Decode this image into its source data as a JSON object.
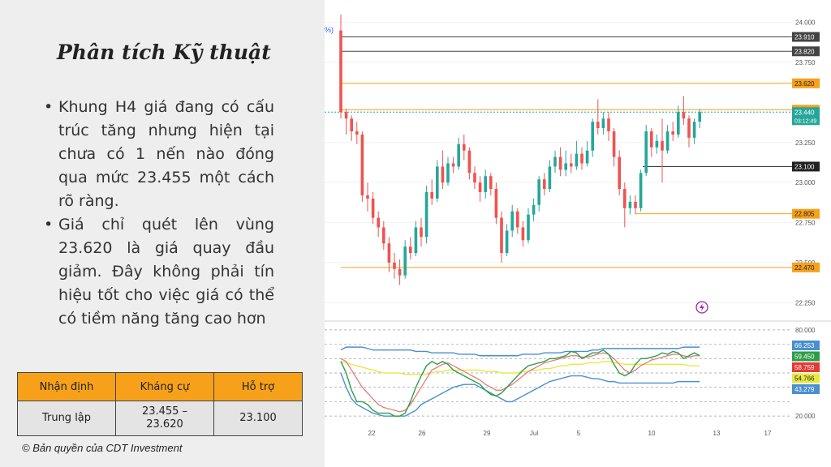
{
  "slide": {
    "title": "Phân tích Kỹ thuật",
    "bullets": [
      "Khung H4 giá đang có cấu trúc tăng nhưng hiện tại chưa có 1 nến nào đóng qua mức 23.455 một cách rõ ràng.",
      "Giá chỉ quét lên vùng 23.620 là giá quay đầu giảm. Đây không phải tín hiệu tốt cho việc giá có thể  có tiềm năng tăng cao hơn"
    ],
    "table": {
      "headers": [
        "Nhận định",
        "Kháng cự",
        "Hỗ trợ"
      ],
      "row": [
        "Trung lập",
        "23.455 – 23.620",
        "23.100"
      ]
    },
    "copyright": "© Bản quyền của CDT Investment"
  },
  "chart_data": {
    "type": "candlestick",
    "price_axis": {
      "ticks": [
        "24.000",
        "23.750",
        "23.250",
        "23.000",
        "22.750",
        "22.500",
        "22.250"
      ],
      "range": [
        22.15,
        24.1
      ]
    },
    "levels": [
      {
        "value": 23.91,
        "label": "23.910",
        "kind": "resistance",
        "color": "#444444"
      },
      {
        "value": 23.82,
        "label": "23.820",
        "kind": "resistance",
        "color": "#444444"
      },
      {
        "value": 23.62,
        "label": "23.620",
        "kind": "resistance",
        "color": "#f7a11a"
      },
      {
        "value": 23.455,
        "label": "23.455",
        "kind": "resistance",
        "color": "#f7a11a"
      },
      {
        "value": 23.1,
        "label": "23.100",
        "kind": "support",
        "color": "#222222"
      },
      {
        "value": 22.805,
        "label": "22.805",
        "kind": "support",
        "color": "#f7a11a"
      },
      {
        "value": 22.47,
        "label": "22.470",
        "kind": "support",
        "color": "#f7a11a"
      }
    ],
    "current_price": {
      "value": 23.44,
      "label": "23.440",
      "countdown": "03:12:49",
      "color": "#26a69a"
    },
    "corner_label": "%)",
    "x_axis": {
      "ticks": [
        "22",
        "26",
        "29",
        "Jul",
        "5",
        "10",
        "13",
        "17"
      ]
    },
    "candles": [
      [
        23.95,
        23.44,
        24.05,
        23.4
      ],
      [
        23.44,
        23.4,
        23.46,
        23.3
      ],
      [
        23.4,
        23.32,
        23.42,
        23.26
      ],
      [
        23.32,
        23.3,
        23.38,
        23.24
      ],
      [
        23.3,
        22.92,
        23.32,
        22.88
      ],
      [
        22.92,
        22.9,
        23.0,
        22.82
      ],
      [
        22.9,
        22.78,
        22.94,
        22.74
      ],
      [
        22.78,
        22.72,
        22.82,
        22.66
      ],
      [
        22.72,
        22.62,
        22.76,
        22.58
      ],
      [
        22.62,
        22.5,
        22.66,
        22.44
      ],
      [
        22.5,
        22.46,
        22.56,
        22.4
      ],
      [
        22.46,
        22.42,
        22.52,
        22.36
      ],
      [
        22.42,
        22.6,
        22.64,
        22.4
      ],
      [
        22.6,
        22.56,
        22.66,
        22.52
      ],
      [
        22.56,
        22.72,
        22.76,
        22.54
      ],
      [
        22.72,
        22.66,
        22.78,
        22.6
      ],
      [
        22.66,
        22.94,
        22.98,
        22.62
      ],
      [
        22.94,
        22.9,
        23.02,
        22.86
      ],
      [
        22.9,
        23.1,
        23.14,
        22.88
      ],
      [
        23.1,
        23.0,
        23.2,
        22.96
      ],
      [
        23.0,
        23.12,
        23.16,
        22.98
      ],
      [
        23.12,
        23.1,
        23.16,
        23.06
      ],
      [
        23.1,
        23.24,
        23.28,
        23.08
      ],
      [
        23.24,
        23.2,
        23.3,
        23.14
      ],
      [
        23.2,
        23.06,
        23.22,
        23.02
      ],
      [
        23.06,
        23.0,
        23.1,
        22.96
      ],
      [
        23.0,
        22.94,
        23.04,
        22.88
      ],
      [
        22.94,
        23.04,
        23.08,
        22.9
      ],
      [
        23.04,
        22.96,
        23.06,
        22.92
      ],
      [
        22.96,
        22.78,
        23.0,
        22.74
      ],
      [
        22.78,
        22.56,
        22.82,
        22.5
      ],
      [
        22.56,
        22.7,
        22.74,
        22.54
      ],
      [
        22.7,
        22.82,
        22.86,
        22.66
      ],
      [
        22.82,
        22.72,
        22.84,
        22.68
      ],
      [
        22.72,
        22.64,
        22.76,
        22.6
      ],
      [
        22.64,
        22.8,
        22.84,
        22.62
      ],
      [
        22.8,
        22.86,
        22.9,
        22.76
      ],
      [
        22.86,
        23.02,
        23.04,
        22.82
      ],
      [
        23.02,
        22.96,
        23.06,
        22.92
      ],
      [
        22.96,
        23.1,
        23.14,
        22.94
      ],
      [
        23.1,
        23.16,
        23.2,
        23.06
      ],
      [
        23.16,
        23.08,
        23.22,
        23.04
      ],
      [
        23.08,
        23.12,
        23.2,
        23.04
      ],
      [
        23.12,
        23.1,
        23.18,
        23.06
      ],
      [
        23.1,
        23.18,
        23.26,
        23.08
      ],
      [
        23.18,
        23.12,
        23.22,
        23.08
      ],
      [
        23.12,
        23.2,
        23.26,
        23.1
      ],
      [
        23.2,
        23.38,
        23.4,
        23.16
      ],
      [
        23.38,
        23.34,
        23.52,
        23.3
      ],
      [
        23.34,
        23.4,
        23.44,
        23.3
      ],
      [
        23.4,
        23.32,
        23.44,
        23.26
      ],
      [
        23.32,
        23.16,
        23.34,
        23.1
      ],
      [
        23.16,
        22.96,
        23.2,
        22.92
      ],
      [
        22.96,
        22.84,
        23.0,
        22.72
      ],
      [
        22.84,
        22.88,
        22.92,
        22.8
      ],
      [
        22.88,
        22.84,
        22.92,
        22.8
      ],
      [
        22.84,
        23.06,
        23.08,
        22.82
      ],
      [
        23.06,
        23.32,
        23.36,
        23.04
      ],
      [
        23.32,
        23.22,
        23.34,
        23.16
      ],
      [
        23.22,
        23.26,
        23.3,
        23.18
      ],
      [
        23.26,
        23.2,
        23.4,
        23.0
      ],
      [
        23.2,
        23.32,
        23.36,
        23.18
      ],
      [
        23.32,
        23.3,
        23.38,
        23.26
      ],
      [
        23.3,
        23.44,
        23.48,
        23.28
      ],
      [
        23.44,
        23.4,
        23.54,
        23.36
      ],
      [
        23.4,
        23.28,
        23.42,
        23.22
      ],
      [
        23.28,
        23.38,
        23.4,
        23.24
      ],
      [
        23.38,
        23.44,
        23.46,
        23.34
      ]
    ],
    "oscillator": {
      "ticks": [
        "80.000",
        "20.000"
      ],
      "range": [
        15,
        85
      ],
      "markers": [
        {
          "label": "66.253",
          "value": 66.253,
          "color": "#4a8fd0"
        },
        {
          "label": "59.450",
          "value": 59.45,
          "color": "#2e9e46"
        },
        {
          "label": "58.759",
          "value": 58.759,
          "color": "#e53935"
        },
        {
          "label": "54.766",
          "value": 54.766,
          "color": "#e8e845"
        },
        {
          "label": "43.279",
          "value": 43.279,
          "color": "#4a8fd0"
        }
      ],
      "green": [
        58,
        50,
        38,
        30,
        30,
        28,
        24,
        22,
        22,
        22,
        20,
        20,
        22,
        30,
        40,
        48,
        55,
        58,
        56,
        58,
        56,
        52,
        50,
        48,
        46,
        44,
        42,
        38,
        35,
        34,
        36,
        40,
        44,
        48,
        52,
        55,
        56,
        57,
        58,
        60,
        60,
        61,
        62,
        65,
        64,
        60,
        62,
        64,
        64,
        66,
        63,
        56,
        50,
        48,
        50,
        56,
        60,
        60,
        61,
        62,
        64,
        63,
        65,
        64,
        60,
        62,
        64,
        62
      ],
      "red": [
        60,
        58,
        52,
        46,
        40,
        36,
        32,
        28,
        26,
        25,
        24,
        23,
        24,
        28,
        34,
        40,
        46,
        52,
        54,
        56,
        57,
        55,
        53,
        51,
        49,
        47,
        45,
        42,
        40,
        38,
        38,
        40,
        42,
        45,
        48,
        51,
        53,
        55,
        57,
        58,
        59,
        60,
        61,
        62,
        62,
        61,
        61,
        62,
        63,
        64,
        63,
        60,
        56,
        52,
        50,
        52,
        55,
        57,
        59,
        60,
        61,
        62,
        63,
        63,
        62,
        61,
        62,
        62
      ],
      "yellow": [
        58,
        57,
        56,
        55,
        54,
        53,
        52,
        51,
        50,
        50,
        50,
        50,
        49,
        49,
        49,
        49,
        49,
        50,
        51,
        51,
        52,
        52,
        52,
        52,
        52,
        52,
        52,
        51,
        51,
        51,
        50,
        50,
        50,
        50,
        51,
        51,
        52,
        52,
        53,
        53,
        54,
        55,
        55,
        56,
        56,
        56,
        57,
        57,
        57,
        58,
        58,
        57,
        57,
        56,
        56,
        56,
        56,
        56,
        56,
        56,
        56,
        56,
        56,
        56,
        56,
        55,
        55,
        55
      ],
      "bb_upper": [
        66,
        68,
        68,
        68,
        68,
        67,
        66,
        66,
        66,
        66,
        66,
        66,
        66,
        66,
        65,
        65,
        65,
        64,
        64,
        64,
        64,
        64,
        63,
        63,
        63,
        63,
        62,
        62,
        62,
        62,
        62,
        62,
        62,
        62,
        63,
        63,
        63,
        63,
        64,
        64,
        64,
        64,
        65,
        65,
        65,
        65,
        65,
        66,
        66,
        67,
        67,
        67,
        67,
        67,
        67,
        67,
        67,
        67,
        67,
        67,
        67,
        67,
        67,
        67,
        68,
        68,
        68,
        68
      ],
      "bb_lower": [
        50,
        40,
        32,
        28,
        26,
        24,
        22,
        21,
        20,
        20,
        20,
        20,
        20,
        22,
        24,
        28,
        30,
        32,
        34,
        36,
        38,
        40,
        41,
        42,
        42,
        42,
        40,
        38,
        36,
        34,
        32,
        30,
        30,
        32,
        34,
        36,
        38,
        40,
        42,
        44,
        45,
        46,
        47,
        48,
        48,
        48,
        47,
        46,
        46,
        45,
        44,
        44,
        43,
        43,
        43,
        43,
        43,
        43,
        43,
        43,
        43,
        43,
        43,
        44,
        44,
        44,
        44,
        44
      ]
    }
  }
}
